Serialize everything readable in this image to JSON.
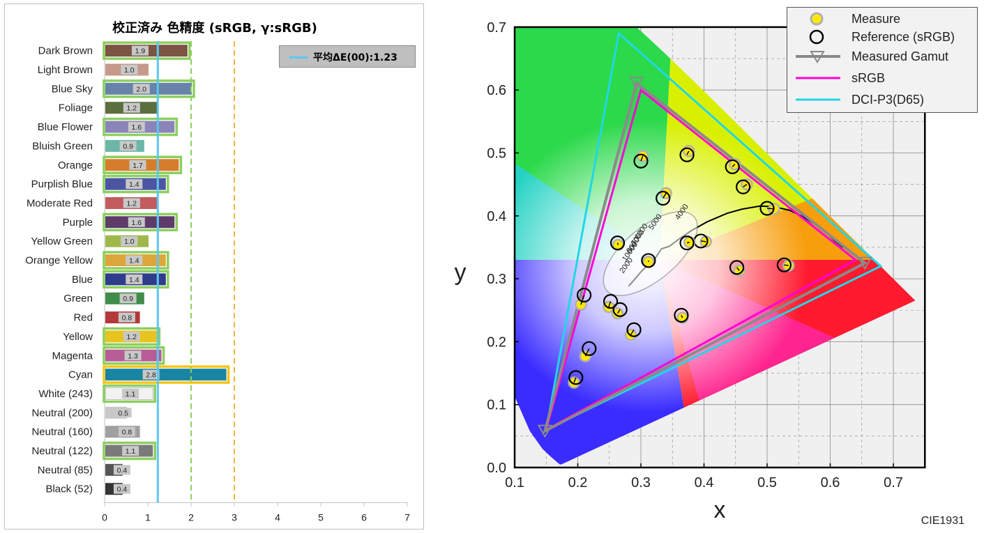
{
  "chart_data": [
    {
      "type": "bar",
      "title": "校正済み 色精度 (sRGB, γ:sRGB)",
      "orientation": "horizontal",
      "categories": [
        "Dark Brown",
        "Light Brown",
        "Blue Sky",
        "Foliage",
        "Blue Flower",
        "Bluish Green",
        "Orange",
        "Purplish Blue",
        "Moderate Red",
        "Purple",
        "Yellow Green",
        "Orange Yellow",
        "Blue",
        "Green",
        "Red",
        "Yellow",
        "Magenta",
        "Cyan",
        "White (243)",
        "Neutral (200)",
        "Neutral (160)",
        "Neutral (122)",
        "Neutral (85)",
        "Black (52)"
      ],
      "values": [
        1.9,
        1.0,
        2.0,
        1.2,
        1.6,
        0.9,
        1.7,
        1.4,
        1.2,
        1.6,
        1.0,
        1.4,
        1.4,
        0.9,
        0.8,
        1.2,
        1.3,
        2.8,
        1.1,
        0.5,
        0.8,
        1.1,
        0.4,
        0.4
      ],
      "labels": [
        "1.9",
        "1.0",
        "2.0",
        "1.2",
        "1.6",
        "0.9",
        "1.7",
        "1.4",
        "1.2",
        "1.6",
        "1.0",
        "1.4",
        "1.4",
        "0.9",
        "0.8",
        "1.2",
        "1.3",
        "2.8",
        "1.1",
        "0.5",
        "0.8",
        "1.1",
        "0.4",
        "0.4"
      ],
      "bar_colors": [
        "#7b5444",
        "#c59a8a",
        "#6783a8",
        "#5b6e3d",
        "#8b84b8",
        "#6ab7a6",
        "#d67d2c",
        "#4b55a1",
        "#c25b5e",
        "#5e3c6a",
        "#9eb94a",
        "#dca63a",
        "#2e3c8b",
        "#418c4a",
        "#b3393a",
        "#e7c420",
        "#b85c98",
        "#1a85a0",
        "#f2f2f2",
        "#c8c8c8",
        "#a0a0a0",
        "#7a7a7a",
        "#555555",
        "#343434"
      ],
      "highlight": [
        "green",
        "none",
        "green",
        "none",
        "green",
        "none",
        "green",
        "green",
        "none",
        "green",
        "none",
        "green",
        "green",
        "none",
        "none",
        "green",
        "green",
        "yellow",
        "green",
        "none",
        "none",
        "green",
        "none",
        "none"
      ],
      "xlim": [
        0,
        7
      ],
      "xticks": [
        "0",
        "1",
        "2",
        "3",
        "4",
        "5",
        "6",
        "7"
      ],
      "reference_lines": [
        {
          "x": 1.23,
          "style": "solid",
          "color": "#5bc8f0"
        },
        {
          "x": 2.0,
          "style": "dashed",
          "color": "#8ccf5f"
        },
        {
          "x": 3.0,
          "style": "dashed",
          "color": "#f0b43c"
        }
      ],
      "legend": "平均ΔE(00):1.23"
    },
    {
      "type": "scatter",
      "title": "",
      "xlabel": "x",
      "ylabel": "y",
      "xlim": [
        0.1,
        0.75
      ],
      "ylim": [
        0.0,
        0.7
      ],
      "xticks": [
        "0.1",
        "0.2",
        "0.3",
        "0.4",
        "0.5",
        "0.6",
        "0.7"
      ],
      "yticks": [
        "0.0",
        "0.1",
        "0.2",
        "0.3",
        "0.4",
        "0.5",
        "0.6",
        "0.7"
      ],
      "caption": "CIE1931",
      "legend": [
        "Measure",
        "Reference (sRGB)",
        "Measured Gamut",
        "sRGB",
        "DCI-P3(D65)"
      ],
      "legend_placement": "top-right",
      "gamut_srgb": [
        [
          0.64,
          0.33
        ],
        [
          0.3,
          0.6
        ],
        [
          0.15,
          0.06
        ]
      ],
      "gamut_dci_p3": [
        [
          0.68,
          0.32
        ],
        [
          0.265,
          0.69
        ],
        [
          0.15,
          0.06
        ]
      ],
      "gamut_measured": [
        [
          0.655,
          0.325
        ],
        [
          0.293,
          0.611
        ],
        [
          0.148,
          0.058
        ]
      ],
      "reference_points": [
        [
          0.3,
          0.487
        ],
        [
          0.373,
          0.497
        ],
        [
          0.445,
          0.478
        ],
        [
          0.462,
          0.446
        ],
        [
          0.335,
          0.428
        ],
        [
          0.5,
          0.412
        ],
        [
          0.263,
          0.357
        ],
        [
          0.312,
          0.329
        ],
        [
          0.395,
          0.36
        ],
        [
          0.373,
          0.357
        ],
        [
          0.452,
          0.318
        ],
        [
          0.527,
          0.322
        ],
        [
          0.21,
          0.274
        ],
        [
          0.252,
          0.264
        ],
        [
          0.267,
          0.251
        ],
        [
          0.289,
          0.219
        ],
        [
          0.364,
          0.242
        ],
        [
          0.218,
          0.189
        ],
        [
          0.197,
          0.143
        ]
      ],
      "measured_points": [
        [
          0.303,
          0.495
        ],
        [
          0.376,
          0.503
        ],
        [
          0.449,
          0.482
        ],
        [
          0.468,
          0.45
        ],
        [
          0.34,
          0.436
        ],
        [
          0.511,
          0.411
        ],
        [
          0.264,
          0.354
        ],
        [
          0.312,
          0.327
        ],
        [
          0.403,
          0.359
        ],
        [
          0.377,
          0.358
        ],
        [
          0.456,
          0.313
        ],
        [
          0.534,
          0.321
        ],
        [
          0.205,
          0.259
        ],
        [
          0.249,
          0.255
        ],
        [
          0.263,
          0.245
        ],
        [
          0.284,
          0.211
        ],
        [
          0.366,
          0.238
        ],
        [
          0.212,
          0.177
        ],
        [
          0.194,
          0.135
        ]
      ],
      "cct_labels": [
        "2000",
        "10000",
        "8000",
        "7000",
        "6000",
        "5000",
        "4000"
      ]
    }
  ]
}
